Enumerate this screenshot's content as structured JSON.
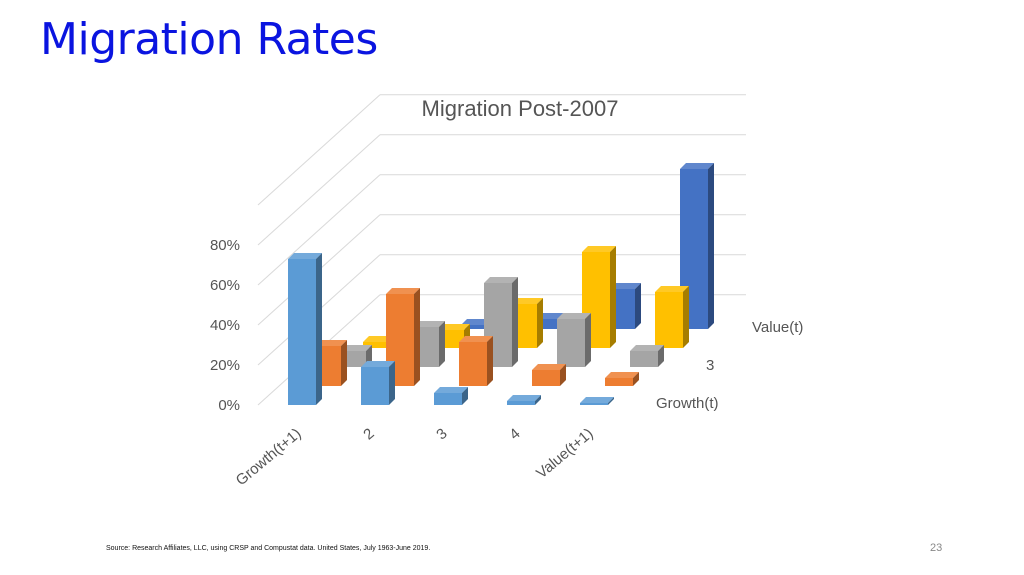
{
  "slide": {
    "title": "Migration Rates",
    "source": "Source: Research Affiliates, LLC, using CRSP and Compustat data. United States, July 1963-June 2019.",
    "page_number": "23"
  },
  "chart_data": {
    "type": "bar",
    "style": "3d-column",
    "title": "Migration Post-2007",
    "categories": [
      "Growth(t+1)",
      "2",
      "3",
      "4",
      "Value(t+1)"
    ],
    "series_axis_labels": [
      "Growth(t)",
      "3",
      "Value(t)"
    ],
    "y_ticks": [
      "0%",
      "20%",
      "40%",
      "60%",
      "80%"
    ],
    "ylim": [
      0,
      100
    ],
    "grid": true,
    "legend": "none",
    "series": [
      {
        "values": [
          73,
          19,
          6,
          2,
          1
        ],
        "color": "#5b9bd5"
      },
      {
        "values": [
          20,
          46,
          22,
          8,
          4
        ],
        "color": "#ed7d31"
      },
      {
        "values": [
          8,
          20,
          42,
          24,
          8
        ],
        "color": "#a5a5a5"
      },
      {
        "values": [
          3,
          9,
          22,
          48,
          28
        ],
        "color": "#ffc000"
      },
      {
        "values": [
          1,
          2,
          5,
          20,
          80
        ],
        "color": "#4472c4"
      }
    ]
  }
}
